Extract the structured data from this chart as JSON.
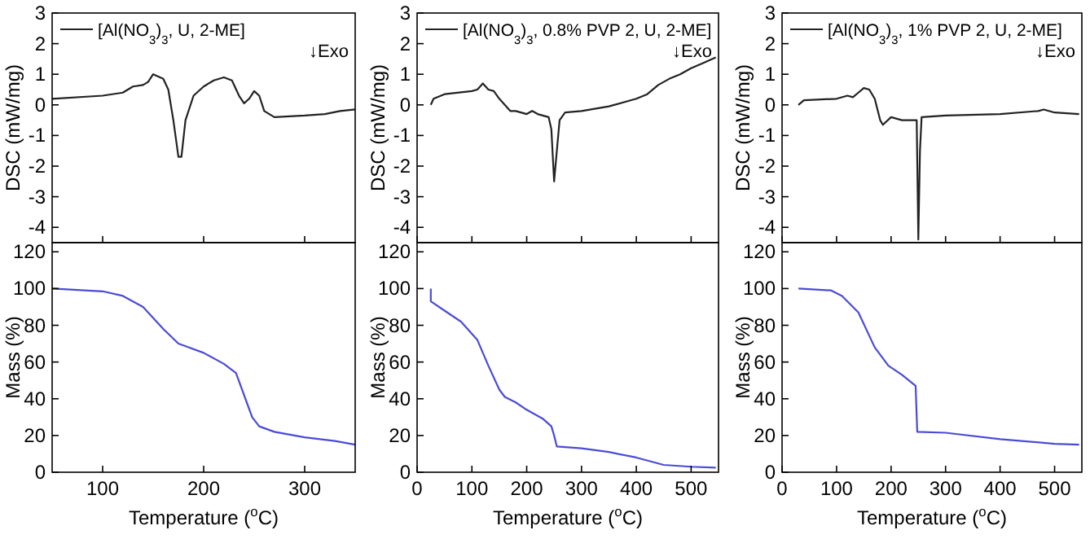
{
  "chart_data": [
    {
      "type": "line",
      "ylabel": "DSC (mW/mg)",
      "xlim": [
        50,
        350
      ],
      "xticks": [
        100,
        200,
        300
      ],
      "ylim": [
        -4.5,
        3
      ],
      "yticks": [
        3,
        2,
        1,
        0,
        -1,
        -2,
        -3,
        -4
      ],
      "tick_labels": "y",
      "legend": "top",
      "annotations": [
        "↓Exo"
      ],
      "series": [
        {
          "name": "[Al(NO$_{3}$)$_{3}$, U, 2-ME]",
          "color": "#222222",
          "x": [
            50,
            100,
            120,
            130,
            140,
            145,
            150,
            160,
            165,
            170,
            175,
            178,
            182,
            190,
            200,
            210,
            220,
            228,
            235,
            240,
            245,
            250,
            255,
            260,
            270,
            300,
            320,
            335,
            350
          ],
          "values": [
            0.2,
            0.3,
            0.4,
            0.6,
            0.65,
            0.75,
            1.0,
            0.85,
            0.5,
            -0.5,
            -1.7,
            -1.7,
            -0.5,
            0.3,
            0.6,
            0.8,
            0.9,
            0.8,
            0.3,
            0.05,
            0.2,
            0.45,
            0.3,
            -0.2,
            -0.4,
            -0.35,
            -0.3,
            -0.2,
            -0.15
          ]
        }
      ]
    },
    {
      "type": "line",
      "ylabel": "DSC (mW/mg)",
      "xlim": [
        0,
        550
      ],
      "xticks": [
        0,
        100,
        200,
        300,
        400,
        500
      ],
      "ylim": [
        -4.5,
        3
      ],
      "yticks": [
        3,
        2,
        1,
        0,
        -1,
        -2,
        -3,
        -4
      ],
      "tick_labels": "y",
      "legend": "top",
      "annotations": [
        "↓Exo"
      ],
      "series": [
        {
          "name": "[Al(NO$_{3}$)$_{3}$, 0.8% PVP 2, U, 2-ME]",
          "color": "#222222",
          "x": [
            25,
            30,
            50,
            100,
            110,
            120,
            130,
            140,
            150,
            170,
            180,
            200,
            210,
            220,
            240,
            245,
            250,
            255,
            260,
            270,
            300,
            350,
            400,
            420,
            440,
            460,
            480,
            500,
            520,
            545
          ],
          "values": [
            0,
            0.2,
            0.35,
            0.45,
            0.5,
            0.7,
            0.5,
            0.45,
            0.2,
            -0.2,
            -0.2,
            -0.3,
            -0.2,
            -0.3,
            -0.4,
            -0.8,
            -2.5,
            -1.5,
            -0.5,
            -0.25,
            -0.2,
            -0.05,
            0.2,
            0.35,
            0.65,
            0.85,
            1.0,
            1.2,
            1.35,
            1.55
          ]
        }
      ]
    },
    {
      "type": "line",
      "ylabel": "DSC (mW/mg)",
      "xlim": [
        0,
        550
      ],
      "xticks": [
        0,
        100,
        200,
        300,
        400,
        500
      ],
      "ylim": [
        -4.5,
        3
      ],
      "yticks": [
        3,
        2,
        1,
        0,
        -1,
        -2,
        -3,
        -4
      ],
      "tick_labels": "y",
      "legend": "top",
      "annotations": [
        "↓Exo"
      ],
      "series": [
        {
          "name": "[Al(NO$_{3}$)$_{3}$, 1% PVP 2, U, 2-ME]",
          "color": "#222222",
          "x": [
            30,
            40,
            100,
            120,
            130,
            140,
            150,
            160,
            170,
            180,
            185,
            200,
            220,
            240,
            247,
            250,
            253,
            256,
            300,
            400,
            470,
            480,
            500,
            545
          ],
          "values": [
            0,
            0.15,
            0.2,
            0.3,
            0.25,
            0.4,
            0.55,
            0.5,
            0.2,
            -0.5,
            -0.65,
            -0.4,
            -0.5,
            -0.5,
            -0.5,
            -4.4,
            -1.5,
            -0.4,
            -0.35,
            -0.3,
            -0.2,
            -0.15,
            -0.25,
            -0.3
          ]
        }
      ]
    },
    {
      "type": "line",
      "xlabel": "Temperature ($^{o}$C)",
      "ylabel": "Mass (%)",
      "xlim": [
        50,
        350
      ],
      "xticks": [
        100,
        200,
        300
      ],
      "ylim": [
        0,
        125
      ],
      "yticks": [
        0,
        20,
        40,
        60,
        80,
        100,
        120
      ],
      "series": [
        {
          "color": "#4b4bd6",
          "x": [
            50,
            100,
            120,
            140,
            160,
            175,
            180,
            200,
            220,
            232,
            240,
            248,
            255,
            270,
            300,
            330,
            350
          ],
          "values": [
            100,
            98.5,
            96,
            90,
            78,
            70,
            69,
            65,
            59,
            54,
            42,
            30,
            25,
            22,
            19,
            17,
            15
          ]
        }
      ]
    },
    {
      "type": "line",
      "xlabel": "Temperature ($^{o}$C)",
      "ylabel": "Mass (%)",
      "xlim": [
        0,
        550
      ],
      "xticks": [
        0,
        100,
        200,
        300,
        400,
        500
      ],
      "ylim": [
        0,
        125
      ],
      "yticks": [
        0,
        20,
        40,
        60,
        80,
        100,
        120
      ],
      "series": [
        {
          "color": "#4b4bd6",
          "x": [
            25,
            25,
            50,
            80,
            110,
            130,
            150,
            160,
            180,
            200,
            230,
            245,
            250,
            255,
            300,
            350,
            400,
            450,
            500,
            545
          ],
          "values": [
            100,
            93,
            88,
            82,
            72,
            58,
            45,
            41,
            38,
            34,
            29,
            25,
            20,
            14,
            13,
            11,
            8,
            4,
            3,
            2.5
          ]
        }
      ]
    },
    {
      "type": "line",
      "xlabel": "Temperature ($^{o}$C)",
      "ylabel": "Mass (%)",
      "xlim": [
        0,
        550
      ],
      "xticks": [
        0,
        100,
        200,
        300,
        400,
        500
      ],
      "ylim": [
        0,
        125
      ],
      "yticks": [
        0,
        20,
        40,
        60,
        80,
        100,
        120
      ],
      "series": [
        {
          "color": "#4b4bd6",
          "x": [
            30,
            90,
            110,
            140,
            170,
            195,
            220,
            245,
            248,
            300,
            400,
            500,
            545
          ],
          "values": [
            100,
            99,
            96,
            87,
            68,
            58,
            53,
            47,
            22,
            21.5,
            18,
            15.5,
            15
          ]
        }
      ]
    }
  ]
}
